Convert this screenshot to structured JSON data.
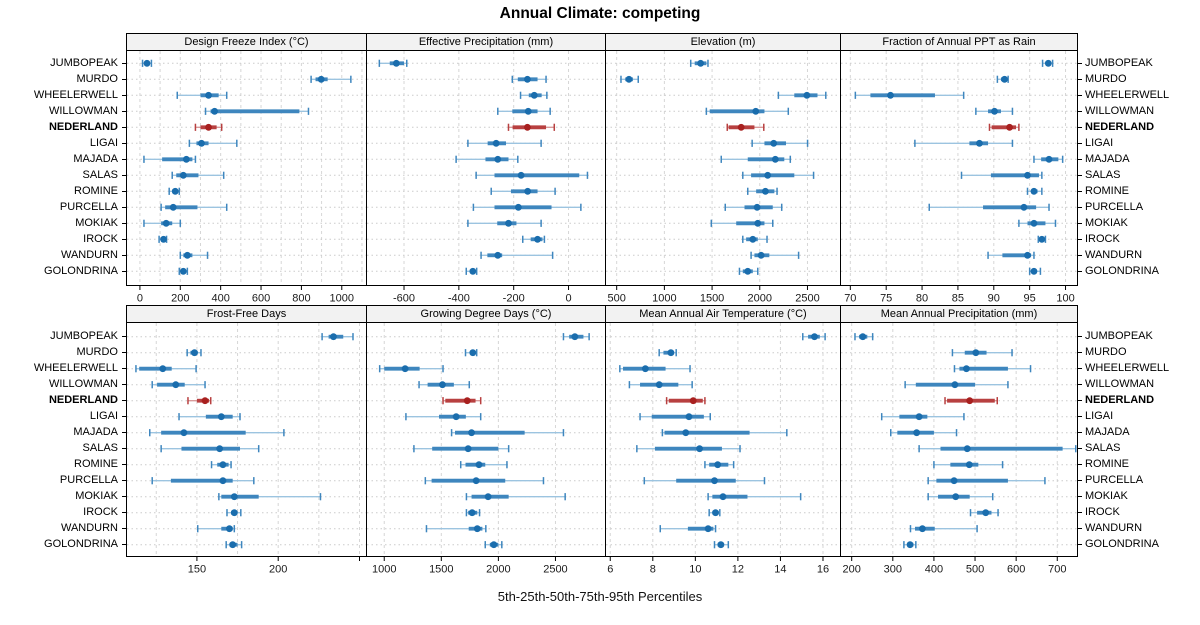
{
  "chart_data": {
    "type": "dotplot-trellis",
    "title": "Annual Climate: competing",
    "caption": "5th-25th-50th-75th-95th Percentiles",
    "percentiles": [
      "5th",
      "25th",
      "50th",
      "75th",
      "95th"
    ],
    "highlight_site": "NEDERLAND",
    "sites": [
      "JUMBOPEAK",
      "MURDO",
      "WHEELERWELL",
      "WILLOWMAN",
      "NEDERLAND",
      "LIGAI",
      "MAJADA",
      "SALAS",
      "ROMINE",
      "PURCELLA",
      "MOKIAK",
      "IROCK",
      "WANDURN",
      "GOLONDRINA"
    ],
    "colors": {
      "dot_blue": "#1A6DAD",
      "band_blue": "#3E86BE",
      "line_blue": "#9CC4E0",
      "dot_red": "#A8201F",
      "band_red": "#B84040",
      "line_red": "#D89A9A",
      "grid": "#D6D6D6",
      "row_guide": "#CCCCCC",
      "strip_bg": "#F2F2F2",
      "border": "#000000"
    },
    "panels": [
      {
        "title": "Design Freeze Index (°C)",
        "xlim": [
          -64,
          1120
        ],
        "ticks": [
          0,
          200,
          400,
          600,
          800,
          1000
        ],
        "tick_labels": [
          "0",
          "200",
          "400",
          "600",
          "800",
          "1000"
        ],
        "grid": [
          0,
          100,
          200,
          300,
          400,
          500,
          600,
          700,
          800,
          900,
          1000,
          1100
        ],
        "values": {
          "JUMBOPEAK": [
            13,
            25,
            35,
            45,
            57
          ],
          "MURDO": [
            848,
            870,
            898,
            930,
            1045
          ],
          "WHEELERWELL": [
            185,
            300,
            340,
            390,
            430
          ],
          "WILLOWMAN": [
            325,
            350,
            370,
            790,
            835
          ],
          "NEDERLAND": [
            275,
            300,
            340,
            380,
            405
          ],
          "LIGAI": [
            245,
            280,
            305,
            340,
            480
          ],
          "MAJADA": [
            20,
            110,
            230,
            260,
            275
          ],
          "SALAS": [
            160,
            180,
            215,
            290,
            415
          ],
          "ROMINE": [
            145,
            160,
            175,
            185,
            195
          ],
          "PURCELLA": [
            105,
            125,
            165,
            285,
            430
          ],
          "MOKIAK": [
            20,
            105,
            130,
            160,
            200
          ],
          "IROCK": [
            95,
            108,
            117,
            124,
            132
          ],
          "WANDURN": [
            200,
            215,
            235,
            260,
            335
          ],
          "GOLONDRINA": [
            195,
            205,
            215,
            225,
            235
          ]
        }
      },
      {
        "title": "Effective Precipitation (mm)",
        "xlim": [
          -735,
          133
        ],
        "ticks": [
          -600,
          -400,
          -200,
          0
        ],
        "tick_labels": [
          "-600",
          "-400",
          "-200",
          "0"
        ],
        "grid": [
          -600,
          -400,
          -200,
          0
        ],
        "values": {
          "JUMBOPEAK": [
            -690,
            -652,
            -628,
            -600,
            -590
          ],
          "MURDO": [
            -205,
            -185,
            -150,
            -113,
            -82
          ],
          "WHEELERWELL": [
            -175,
            -145,
            -125,
            -98,
            -79
          ],
          "WILLOWMAN": [
            -258,
            -205,
            -147,
            -113,
            -67
          ],
          "NEDERLAND": [
            -219,
            -204,
            -150,
            -82,
            -52
          ],
          "LIGAI": [
            -367,
            -295,
            -264,
            -228,
            -100
          ],
          "MAJADA": [
            -410,
            -303,
            -258,
            -219,
            -185
          ],
          "SALAS": [
            -337,
            -270,
            -173,
            39,
            69
          ],
          "ROMINE": [
            -282,
            -210,
            -149,
            -113,
            -49
          ],
          "PURCELLA": [
            -347,
            -270,
            -183,
            -62,
            45
          ],
          "MOKIAK": [
            -367,
            -260,
            -219,
            -190,
            -100
          ],
          "IROCK": [
            -167,
            -138,
            -113,
            -95,
            -88
          ],
          "WANDURN": [
            -319,
            -296,
            -258,
            -242,
            -58
          ],
          "GOLONDRINA": [
            -373,
            -360,
            -349,
            -340,
            -335
          ]
        }
      },
      {
        "title": "Elevation (m)",
        "xlim": [
          388,
          2841
        ],
        "ticks": [
          500,
          1000,
          1500,
          2000,
          2500
        ],
        "tick_labels": [
          "500",
          "1000",
          "1500",
          "2000",
          "2500"
        ],
        "grid": [
          500,
          1000,
          1500,
          2000,
          2500
        ],
        "values": {
          "JUMBOPEAK": [
            1276,
            1318,
            1380,
            1440,
            1457
          ],
          "MURDO": [
            545,
            590,
            629,
            670,
            726
          ],
          "WHEELERWELL": [
            2195,
            2362,
            2494,
            2605,
            2692
          ],
          "WILLOWMAN": [
            1440,
            1475,
            1958,
            2049,
            2299
          ],
          "NEDERLAND": [
            1659,
            1673,
            1805,
            1944,
            2042
          ],
          "LIGAI": [
            1920,
            2049,
            2146,
            2275,
            2501
          ],
          "MAJADA": [
            1596,
            1874,
            2163,
            2257,
            2320
          ],
          "SALAS": [
            1822,
            1909,
            2083,
            2362,
            2564
          ],
          "ROMINE": [
            1874,
            1962,
            2059,
            2153,
            2181
          ],
          "PURCELLA": [
            1638,
            1840,
            1972,
            2136,
            2230
          ],
          "MOKIAK": [
            1492,
            1753,
            1979,
            2049,
            2136
          ],
          "IROCK": [
            1822,
            1857,
            1927,
            1979,
            2076
          ],
          "WANDURN": [
            1909,
            1944,
            2014,
            2100,
            2407
          ],
          "GOLONDRINA": [
            1787,
            1822,
            1874,
            1927,
            1979
          ]
        }
      },
      {
        "title": "Fraction of Annual PPT as Rain",
        "xlim": [
          68.7,
          101.6
        ],
        "ticks": [
          70,
          75,
          80,
          85,
          90,
          95,
          100
        ],
        "tick_labels": [
          "70",
          "75",
          "80",
          "85",
          "90",
          "95",
          "100"
        ],
        "grid": [
          70,
          75,
          80,
          85,
          90,
          95,
          100
        ],
        "values": {
          "JUMBOPEAK": [
            96.8,
            97.2,
            97.6,
            97.9,
            98.2
          ],
          "MURDO": [
            90.5,
            91.0,
            91.5,
            91.8,
            92.0
          ],
          "WHEELERWELL": [
            70.7,
            72.8,
            75.6,
            81.8,
            85.8
          ],
          "WILLOWMAN": [
            87.5,
            89.2,
            90.1,
            91.0,
            92.6
          ],
          "NEDERLAND": [
            89.4,
            89.7,
            92.2,
            93.1,
            93.5
          ],
          "LIGAI": [
            79.0,
            86.6,
            88.0,
            89.2,
            92.6
          ],
          "MAJADA": [
            95.6,
            96.6,
            97.7,
            99.0,
            99.6
          ],
          "SALAS": [
            85.5,
            89.6,
            94.7,
            96.3,
            96.7
          ],
          "ROMINE": [
            94.7,
            95.2,
            95.6,
            96.1,
            96.7
          ],
          "PURCELLA": [
            81.0,
            88.5,
            94.2,
            95.9,
            97.7
          ],
          "MOKIAK": [
            93.5,
            94.7,
            95.6,
            97.2,
            98.6
          ],
          "IROCK": [
            96.2,
            96.5,
            96.7,
            97.0,
            97.2
          ],
          "WANDURN": [
            89.2,
            91.2,
            94.7,
            95.2,
            95.6
          ],
          "GOLONDRINA": [
            95.0,
            95.3,
            95.6,
            96.0,
            96.5
          ]
        }
      },
      {
        "title": "Frost-Free Days",
        "xlim": [
          107,
          254
        ],
        "ticks": [
          150,
          200,
          250
        ],
        "tick_labels": [
          "150",
          "200",
          ""
        ],
        "grid": [
          125,
          150,
          175,
          200,
          225,
          250
        ],
        "values": {
          "JUMBOPEAK": [
            227,
            231,
            234,
            240,
            246
          ],
          "MURDO": [
            144,
            146,
            148.5,
            150.5,
            152.5
          ],
          "WHEELERWELL": [
            112.5,
            114.5,
            129,
            134.5,
            149.5
          ],
          "WILLOWMAN": [
            122.5,
            125.5,
            137,
            142.5,
            155
          ],
          "NEDERLAND": [
            144.5,
            150,
            155,
            157.5,
            158.5
          ],
          "LIGAI": [
            139,
            155.5,
            165,
            172,
            176.5
          ],
          "MAJADA": [
            121,
            128,
            142,
            180,
            203.5
          ],
          "SALAS": [
            128,
            140.5,
            164,
            176.5,
            188
          ],
          "ROMINE": [
            159,
            162.5,
            166,
            169.5,
            171
          ],
          "PURCELLA": [
            122.5,
            134,
            166,
            172,
            185
          ],
          "MOKIAK": [
            163.5,
            165,
            173,
            188,
            226
          ],
          "IROCK": [
            168.5,
            171,
            173,
            175,
            177
          ],
          "WANDURN": [
            150.5,
            165,
            170,
            172,
            173
          ],
          "GOLONDRINA": [
            168,
            170,
            172,
            175,
            177.5
          ]
        }
      },
      {
        "title": "Growing Degree Days (°C)",
        "xlim": [
          849,
          2934
        ],
        "ticks": [
          1000,
          1500,
          2000,
          2500
        ],
        "tick_labels": [
          "1000",
          "1500",
          "2000",
          "2500"
        ],
        "grid": [
          1000,
          1500,
          2000,
          2500
        ],
        "values": {
          "JUMBOPEAK": [
            2570,
            2620,
            2670,
            2745,
            2795
          ],
          "MURDO": [
            1712,
            1750,
            1776,
            1795,
            1810
          ],
          "WHEELERWELL": [
            960,
            1000,
            1183,
            1310,
            1515
          ],
          "WILLOWMAN": [
            1305,
            1380,
            1510,
            1610,
            1745
          ],
          "NEDERLAND": [
            1515,
            1535,
            1727,
            1800,
            1845
          ],
          "LIGAI": [
            1190,
            1480,
            1630,
            1715,
            1845
          ],
          "MAJADA": [
            1590,
            1620,
            1765,
            2230,
            2570
          ],
          "SALAS": [
            1260,
            1420,
            1735,
            2000,
            2090
          ],
          "ROMINE": [
            1670,
            1712,
            1830,
            1885,
            2075
          ],
          "PURCELLA": [
            1360,
            1415,
            1805,
            2060,
            2395
          ],
          "MOKIAK": [
            1720,
            1765,
            1910,
            2090,
            2585
          ],
          "IROCK": [
            1720,
            1735,
            1770,
            1815,
            1835
          ],
          "WANDURN": [
            1370,
            1740,
            1815,
            1860,
            1890
          ],
          "GOLONDRINA": [
            1885,
            1925,
            1960,
            2000,
            2030
          ]
        }
      },
      {
        "title": "Mean Annual Air Temperature (°C)",
        "xlim": [
          5.8,
          16.8
        ],
        "ticks": [
          6,
          8,
          10,
          12,
          14,
          16
        ],
        "tick_labels": [
          "6",
          "8",
          "10",
          "12",
          "14",
          "16"
        ],
        "grid": [
          6,
          8,
          10,
          12,
          14,
          16
        ],
        "values": {
          "JUMBOPEAK": [
            15.05,
            15.3,
            15.6,
            15.85,
            16.1
          ],
          "MURDO": [
            8.3,
            8.5,
            8.85,
            9.0,
            9.1
          ],
          "WHEELERWELL": [
            6.45,
            6.6,
            7.65,
            8.6,
            9.75
          ],
          "WILLOWMAN": [
            6.9,
            7.4,
            8.3,
            9.2,
            9.85
          ],
          "NEDERLAND": [
            8.65,
            8.75,
            9.9,
            10.35,
            10.45
          ],
          "LIGAI": [
            7.4,
            7.95,
            9.7,
            10.4,
            10.7
          ],
          "MAJADA": [
            8.45,
            8.55,
            9.55,
            12.55,
            14.3
          ],
          "SALAS": [
            7.25,
            8.1,
            10.2,
            11.25,
            12.1
          ],
          "ROMINE": [
            10.45,
            10.65,
            11.05,
            11.55,
            11.8
          ],
          "PURCELLA": [
            7.6,
            9.1,
            10.9,
            11.9,
            13.25
          ],
          "MOKIAK": [
            10.6,
            10.8,
            11.3,
            12.45,
            14.95
          ],
          "IROCK": [
            10.65,
            10.8,
            10.95,
            11.1,
            11.15
          ],
          "WANDURN": [
            8.35,
            9.65,
            10.6,
            10.85,
            10.95
          ],
          "GOLONDRINA": [
            10.9,
            11.05,
            11.2,
            11.35,
            11.55
          ]
        }
      },
      {
        "title": "Mean Annual Precipitation (mm)",
        "xlim": [
          174,
          748
        ],
        "ticks": [
          200,
          300,
          400,
          500,
          600,
          700
        ],
        "tick_labels": [
          "200",
          "300",
          "400",
          "500",
          "600",
          "700"
        ],
        "grid": [
          200,
          300,
          400,
          500,
          600,
          700
        ],
        "values": {
          "JUMBOPEAK": [
            208,
            218,
            227,
            238,
            251
          ],
          "MURDO": [
            445,
            475,
            502,
            528,
            590
          ],
          "WHEELERWELL": [
            450,
            462,
            479,
            580,
            635
          ],
          "WILLOWMAN": [
            330,
            356,
            451,
            500,
            580
          ],
          "NEDERLAND": [
            427,
            432,
            487,
            548,
            554
          ],
          "LIGAI": [
            273,
            316,
            364,
            384,
            473
          ],
          "MAJADA": [
            295,
            311,
            358,
            400,
            455
          ],
          "SALAS": [
            364,
            416,
            481,
            713,
            745
          ],
          "ROMINE": [
            400,
            440,
            486,
            508,
            567
          ],
          "PURCELLA": [
            386,
            406,
            449,
            580,
            670
          ],
          "MOKIAK": [
            386,
            410,
            453,
            487,
            543
          ],
          "IROCK": [
            489,
            505,
            526,
            540,
            556
          ],
          "WANDURN": [
            343,
            354,
            372,
            402,
            505
          ],
          "GOLONDRINA": [
            327,
            335,
            342,
            350,
            356
          ]
        }
      }
    ]
  }
}
